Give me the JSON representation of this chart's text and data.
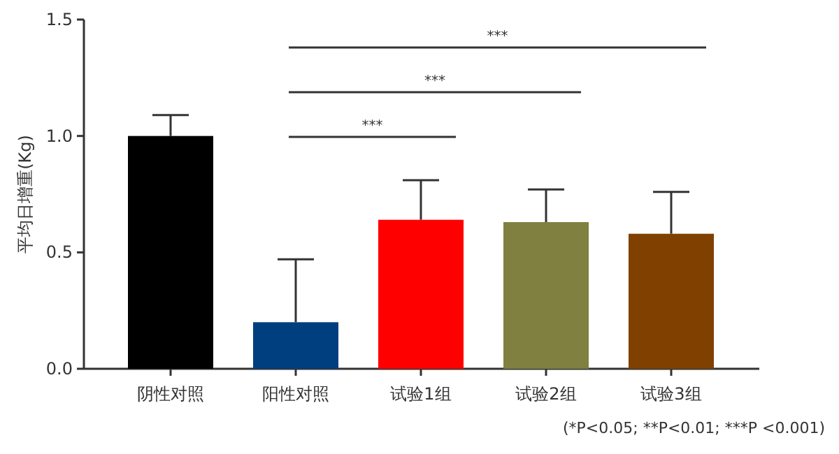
{
  "chart_data": {
    "type": "bar",
    "ylabel": "平均日增重(Kg)",
    "categories": [
      "阴性对照",
      "阳性对照",
      "试验1组",
      "试验2组",
      "试验3组"
    ],
    "values": [
      1.0,
      0.2,
      0.64,
      0.63,
      0.58
    ],
    "colors": [
      "#000000",
      "#003f7f",
      "#ff0000",
      "#808040",
      "#804000"
    ],
    "errors": [
      0.09,
      0.27,
      0.17,
      0.14,
      0.18
    ],
    "ylim": [
      0,
      1.5
    ],
    "yticks": [
      {
        "value": 0,
        "label": "0.0"
      },
      {
        "value": 0.5,
        "label": "0.5"
      },
      {
        "value": 1,
        "label": "1.0"
      },
      {
        "value": 1.5,
        "label": "1.5"
      }
    ],
    "annotations": [
      "***",
      "***",
      "***",
      "(*P<0.05; **P<0.01; ***P <0.001)"
    ]
  }
}
